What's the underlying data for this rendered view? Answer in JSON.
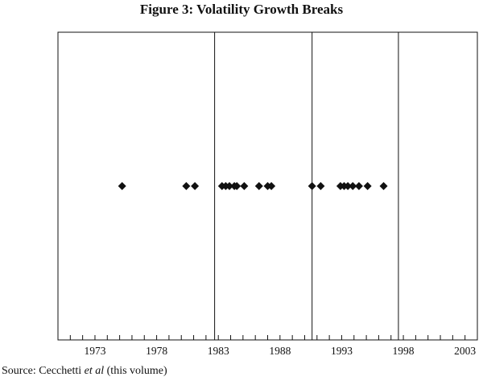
{
  "page": {
    "title": "Figure 3: Volatility Growth Breaks",
    "source_prefix": "Source: Cecchetti ",
    "source_italic": "et al",
    "source_suffix": " (this volume)"
  },
  "chart_data": {
    "type": "scatter",
    "title": "Figure 3: Volatility Growth Breaks",
    "xlabel": "",
    "ylabel": "",
    "xlim": [
      1970,
      2004
    ],
    "ylim": [
      0,
      1
    ],
    "grid": false,
    "legend": "none",
    "x_tick_labels": [
      "1973",
      "1978",
      "1983",
      "1988",
      "1993",
      "1998",
      "2003"
    ],
    "x_tick_label_values": [
      1973,
      1978,
      1983,
      1988,
      1993,
      1998,
      2003
    ],
    "minor_tick_values": [
      1971,
      1972,
      1973,
      1974,
      1975,
      1976,
      1977,
      1978,
      1979,
      1980,
      1981,
      1982,
      1983,
      1984,
      1985,
      1986,
      1987,
      1988,
      1989,
      1990,
      1991,
      1992,
      1993,
      1994,
      1995,
      1996,
      1997,
      1998,
      1999,
      2000,
      2001,
      2002,
      2003
    ],
    "vertical_lines": [
      1982.7,
      1990.6,
      1997.6
    ],
    "series": [
      {
        "name": "Volatility growth breaks",
        "marker": "diamond",
        "color": "#111111",
        "x": [
          1975.2,
          1980.4,
          1981.1,
          1983.3,
          1983.6,
          1983.9,
          1984.3,
          1984.5,
          1985.1,
          1986.3,
          1987.0,
          1987.3,
          1990.6,
          1991.3,
          1992.9,
          1993.2,
          1993.5,
          1993.9,
          1994.4,
          1995.1,
          1996.4
        ],
        "y": [
          0.5,
          0.5,
          0.5,
          0.5,
          0.5,
          0.5,
          0.5,
          0.5,
          0.5,
          0.5,
          0.5,
          0.5,
          0.5,
          0.5,
          0.5,
          0.5,
          0.5,
          0.5,
          0.5,
          0.5,
          0.5
        ]
      }
    ]
  }
}
